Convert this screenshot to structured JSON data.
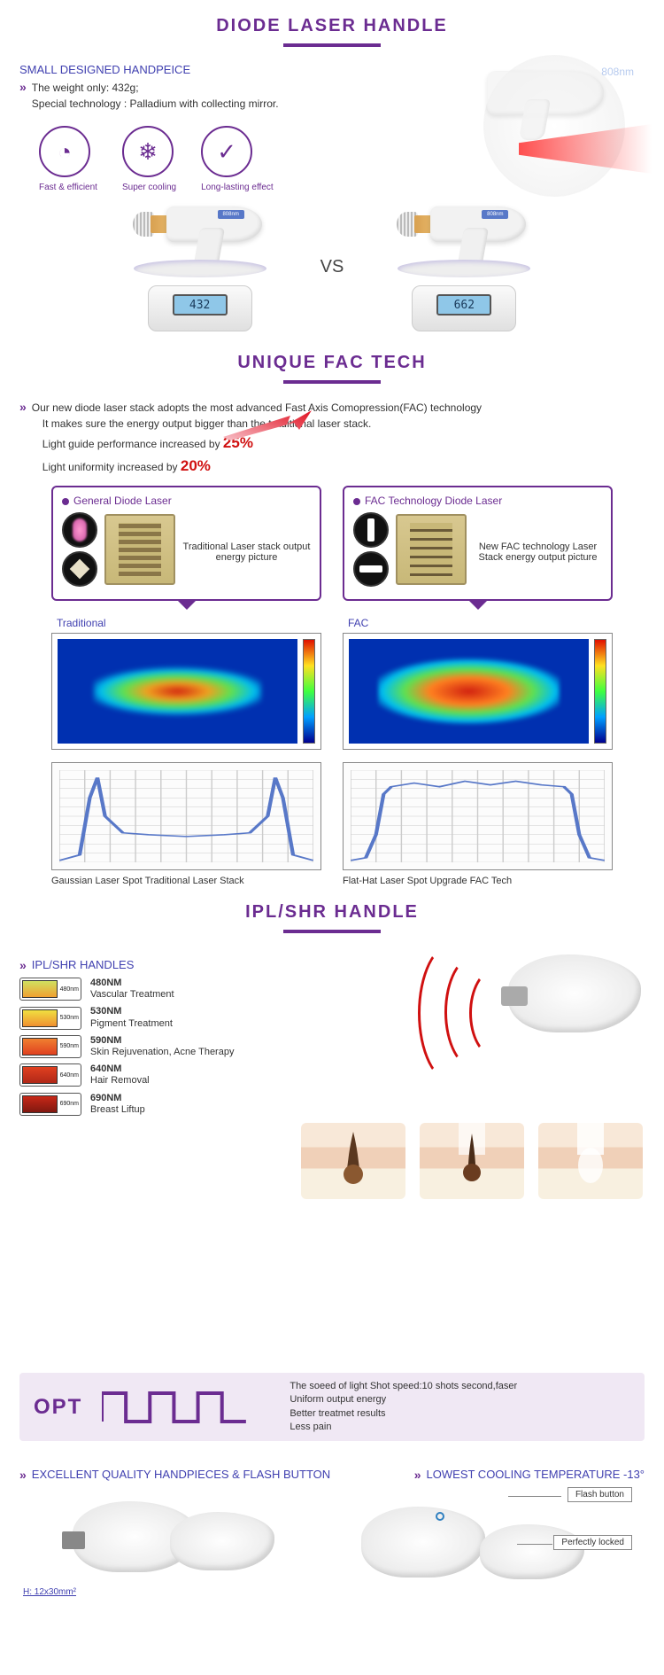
{
  "section1": {
    "title": "DIODE LASER HANDLE",
    "subhead": "SMALL DESIGNED HANDPEICE",
    "bullet_line1": "The weight only: 432g;",
    "bullet_line2": "Special technology : Palladium with collecting mirror.",
    "features": [
      {
        "label": "Fast & efficient",
        "icon": "◔"
      },
      {
        "label": "Super cooling",
        "icon": "❄"
      },
      {
        "label": "Long-lasting effect",
        "icon": "✓"
      }
    ],
    "vs_label": "VS",
    "scale_left_reading": "432",
    "scale_right_reading": "662",
    "gun_badge": "808nm"
  },
  "section2": {
    "title": "UNIQUE FAC TECH",
    "intro_line1": "Our new diode laser stack adopts the most advanced Fast Axis Comopression(FAC) technology",
    "intro_line2": "It makes sure the energy output bigger than the traditional laser stack.",
    "intro_line3_a": "Light guide performance increased by ",
    "intro_line3_pct": "25%",
    "intro_line4_a": "Light uniformity increased by ",
    "intro_line4_pct": "20%",
    "box_left_title": "General Diode Laser",
    "box_left_caption": "Traditional Laser stack output energy picture",
    "box_right_title": "FAC Technology Diode Laser",
    "box_right_caption": "New FAC technology Laser Stack energy output picture",
    "heatmap_left_label": "Traditional",
    "heatmap_right_label": "FAC",
    "chart_left_caption": "Gaussian Laser Spot Traditional Laser Stack",
    "chart_right_caption": "Flat-Hat Laser Spot Upgrade FAC Tech",
    "traditional_curve": {
      "type": "line",
      "x": [
        0,
        8,
        12,
        15,
        18,
        25,
        35,
        50,
        65,
        75,
        82,
        85,
        88,
        92,
        100
      ],
      "y": [
        2,
        8,
        70,
        92,
        50,
        32,
        30,
        28,
        30,
        32,
        50,
        92,
        70,
        8,
        2
      ],
      "ylim": [
        0,
        100
      ],
      "xlim": [
        0,
        100
      ],
      "line_color": "#5878c8",
      "grid_color": "#cccccc",
      "background": "#fcfcfc"
    },
    "fac_curve": {
      "type": "line",
      "x": [
        0,
        6,
        10,
        13,
        16,
        25,
        35,
        45,
        55,
        65,
        75,
        84,
        87,
        90,
        94,
        100
      ],
      "y": [
        2,
        5,
        30,
        74,
        82,
        86,
        82,
        88,
        84,
        88,
        84,
        82,
        74,
        30,
        5,
        2
      ],
      "ylim": [
        0,
        100
      ],
      "xlim": [
        0,
        100
      ],
      "line_color": "#5878c8",
      "grid_color": "#cccccc",
      "background": "#fcfcfc"
    },
    "heatmap_colors": [
      "#000090",
      "#00a0ff",
      "#40ff40",
      "#ffe020",
      "#e01000"
    ]
  },
  "section3": {
    "title": "IPL/SHR HANDLE",
    "list_head": "IPL/SHR HANDLES",
    "items": [
      {
        "nm": "480NM",
        "desc": "Vascular Treatment",
        "chip_label": "480nm",
        "color1": "#d0e060",
        "color2": "#f0a030"
      },
      {
        "nm": "530NM",
        "desc": "Pigment Treatment",
        "chip_label": "530nm",
        "color1": "#f0e040",
        "color2": "#f09030"
      },
      {
        "nm": "590NM",
        "desc": "Skin Rejuvenation, Acne Therapy",
        "chip_label": "590nm",
        "color1": "#f08030",
        "color2": "#e04020"
      },
      {
        "nm": "640NM",
        "desc": "Hair Removal",
        "chip_label": "640nm",
        "color1": "#e04020",
        "color2": "#b02818"
      },
      {
        "nm": "690NM",
        "desc": "Breast Liftup",
        "chip_label": "690nm",
        "color1": "#c82818",
        "color2": "#801810"
      }
    ],
    "opt_label": "OPT",
    "opt_lines": [
      "The soeed of light Shot speed:10 shots second,faser",
      "Uniform output energy",
      "Better treatmet results",
      "Less pain"
    ],
    "opt_pulse": {
      "high": 6,
      "low": 38,
      "periods": 3,
      "duty": 0.5,
      "stroke": "#6b2c91"
    },
    "bottom_left_head": "EXCELLENT QUALITY HANDPIECES & FLASH BUTTON",
    "bottom_right_head": "LOWEST COOLING TEMPERATURE -13°",
    "dim_text": "H: 12x30mm²",
    "callout_flash": "Flash button",
    "callout_lock": "Perfectly locked",
    "wave_color": "#d01010"
  },
  "colors": {
    "brand_purple": "#6b2c91",
    "blue_text": "#4040b0",
    "red_accent": "#d01010"
  }
}
